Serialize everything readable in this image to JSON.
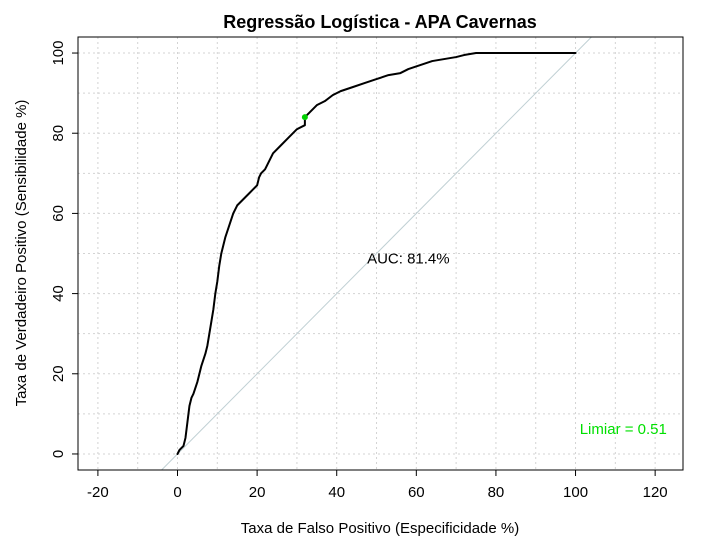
{
  "chart_data": {
    "type": "line",
    "title": "Regressão Logística - APA Cavernas",
    "xlabel": "Taxa de Falso Positivo (Especificidade %)",
    "ylabel": "Taxa de Verdadeiro Positivo (Sensibilidade %)",
    "xlim": [
      -25,
      127
    ],
    "ylim": [
      -4,
      104
    ],
    "x_ticks": [
      -20,
      0,
      20,
      40,
      60,
      80,
      100,
      120
    ],
    "y_ticks": [
      0,
      20,
      40,
      60,
      80,
      100
    ],
    "x_tick_labels": [
      "-20",
      "0",
      "20",
      "40",
      "60",
      "80",
      "100",
      "120"
    ],
    "y_tick_labels": [
      "0",
      "20",
      "40",
      "60",
      "80",
      "100"
    ],
    "grid": true,
    "grid_color": "#d3d3d3",
    "series": [
      {
        "color": "#000000",
        "x": [
          0,
          0.5,
          1.5,
          2,
          2.5,
          3,
          3.5,
          4,
          5,
          5.5,
          6,
          7,
          7.5,
          8,
          8.5,
          9,
          9.5,
          10,
          10.5,
          11,
          11.5,
          12,
          13,
          14,
          15,
          16,
          17,
          18,
          19,
          20,
          20.5,
          21,
          22,
          23,
          24,
          26,
          28,
          30,
          32,
          32,
          33,
          35,
          37,
          39,
          41,
          44,
          47,
          50,
          53,
          56,
          58,
          61,
          64,
          67,
          70,
          72,
          75,
          78,
          85,
          100
        ],
        "y": [
          0,
          1,
          2,
          4,
          8,
          12,
          14,
          15,
          18,
          20,
          22,
          25,
          27,
          30,
          33,
          36,
          40,
          43,
          47,
          50,
          52,
          54,
          57,
          60,
          62,
          63,
          64,
          65,
          66,
          67,
          69,
          70,
          71,
          73,
          75,
          77,
          79,
          81,
          82,
          84,
          85,
          87,
          88,
          89.5,
          90.5,
          91.5,
          92.5,
          93.5,
          94.5,
          95,
          96,
          97,
          98,
          98.5,
          99,
          99.5,
          100,
          100,
          100,
          100
        ]
      }
    ],
    "reference_line": {
      "color": "#c0d0d4",
      "x": [
        -4,
        104
      ],
      "y": [
        -4,
        104
      ]
    },
    "highlight_point": {
      "x": 32,
      "y": 84,
      "color": "#00d000"
    },
    "annotations": {
      "auc_text": "AUC: 81.4%",
      "auc_x": 58,
      "auc_y": 47.5,
      "threshold_text": "Limiar = 0.51",
      "threshold_color": "#00e000",
      "threshold_x": 112,
      "threshold_y": 5
    }
  }
}
